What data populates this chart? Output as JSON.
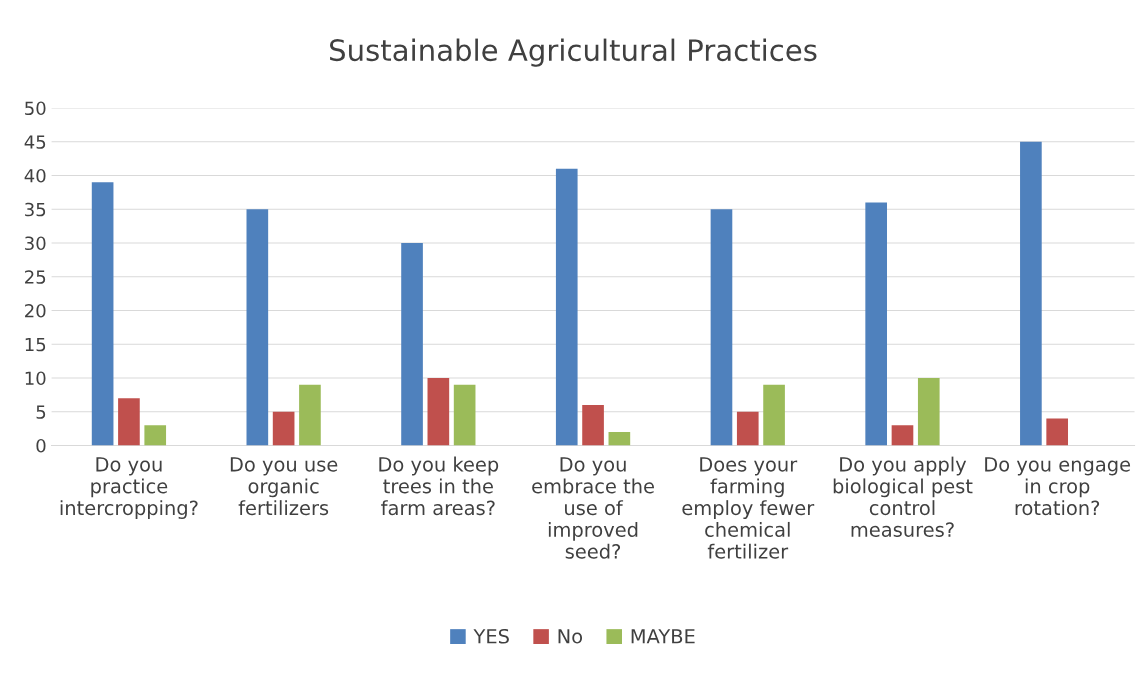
{
  "chart_data": {
    "type": "bar",
    "title": "Sustainable Agricultural Practices",
    "categories": [
      "Do you\npractice\nintercropping?",
      "Do you use\norganic\nfertilizers",
      "Do you keep\ntrees in the\nfarm areas?",
      "Do you\nembrace the\nuse of\nimproved\nseed?",
      "Does your\nfarming\nemploy fewer\nchemical\nfertilizer",
      "Do you apply\nbiological pest\ncontrol\nmeasures?",
      "Do you engage\nin crop\nrotation?"
    ],
    "series": [
      {
        "name": "YES",
        "color": "#4f81bd",
        "values": [
          39,
          35,
          30,
          41,
          35,
          36,
          45
        ]
      },
      {
        "name": "No",
        "color": "#c0504d",
        "values": [
          7,
          5,
          10,
          6,
          5,
          3,
          4
        ]
      },
      {
        "name": "MAYBE",
        "color": "#9bbb59",
        "values": [
          3,
          9,
          9,
          2,
          9,
          10,
          null
        ]
      }
    ],
    "ylim": [
      0,
      50
    ],
    "yticks": [
      0,
      5,
      10,
      15,
      20,
      25,
      30,
      35,
      40,
      45,
      50
    ],
    "grid": "y",
    "legend": "bottom"
  }
}
